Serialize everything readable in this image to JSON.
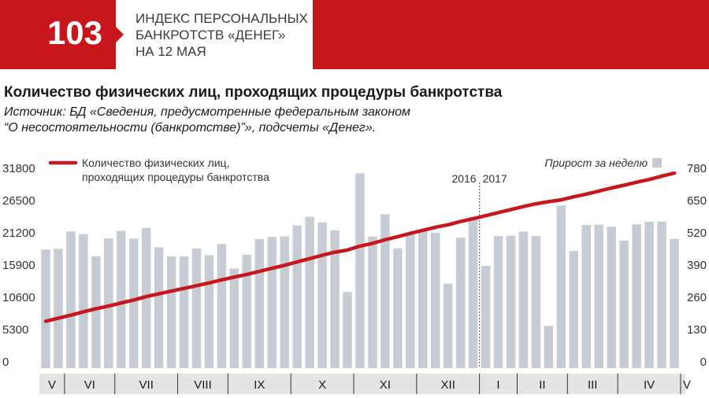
{
  "colors": {
    "brand_red": "#c8161d",
    "bar_gray": "#c5ccd3",
    "axis_text": "#333333",
    "band_gray": "#e4e4e4"
  },
  "header": {
    "index_number": "103",
    "index_title_lines": [
      "ИНДЕКС ПЕРСОНАЛЬНЫХ",
      "БАНКРОТСТВ «ДЕНЕГ»",
      "НА 12 МАЯ"
    ]
  },
  "title": "Количество физических лиц, проходящих процедуры банкротства",
  "source_lines": [
    "Источник: БД «Сведения, предусмотренные федеральным законом",
    "“О несостоятельности (банкротстве)”», подсчеты «Денег»."
  ],
  "chart_data": {
    "type": "bar+line",
    "legend": {
      "line_label_lines": [
        "Количество физических лиц,",
        "проходящих процедуры банкротства"
      ],
      "bar_label": "Прирост за неделю"
    },
    "left_axis": {
      "ticks": [
        0,
        5300,
        10600,
        15900,
        21200,
        26500,
        31800
      ],
      "tick_labels": [
        "0",
        "5300",
        "10600",
        "15900",
        "21200",
        "26500",
        "31800"
      ],
      "ylim": [
        0,
        31800
      ]
    },
    "right_axis": {
      "ticks": [
        0,
        130,
        260,
        390,
        520,
        650,
        780
      ],
      "tick_labels": [
        "0",
        "130",
        "260",
        "390",
        "520",
        "650",
        "780"
      ],
      "ylim": [
        0,
        780
      ]
    },
    "year_labels": [
      "2016",
      "2017"
    ],
    "year_divider_after_week": 35,
    "months": [
      {
        "label": "V",
        "weeks": 2
      },
      {
        "label": "VI",
        "weeks": 4
      },
      {
        "label": "VII",
        "weeks": 5
      },
      {
        "label": "VIII",
        "weeks": 4
      },
      {
        "label": "IX",
        "weeks": 5
      },
      {
        "label": "X",
        "weeks": 5
      },
      {
        "label": "XI",
        "weeks": 5
      },
      {
        "label": "XII",
        "weeks": 5
      },
      {
        "label": "I",
        "weeks": 3
      },
      {
        "label": "II",
        "weeks": 4
      },
      {
        "label": "III",
        "weeks": 4
      },
      {
        "label": "IV",
        "weeks": 5
      },
      {
        "label": "V",
        "weeks": 1
      }
    ],
    "series": [
      {
        "name": "Прирост за неделю",
        "kind": "bar",
        "axis": "right",
        "values": [
          478,
          481,
          551,
          540,
          451,
          523,
          554,
          522,
          565,
          487,
          450,
          450,
          482,
          455,
          500,
          401,
          457,
          520,
          529,
          531,
          575,
          610,
          587,
          555,
          307,
          785,
          530,
          620,
          483,
          543,
          557,
          546,
          340,
          526,
          610,
          412,
          532,
          534,
          550,
          532,
          170,
          655,
          472,
          577,
          578,
          570,
          514,
          580,
          590,
          590,
          521
        ]
      },
      {
        "name": "Количество физических лиц, проходящих процедуры банкротства",
        "kind": "line",
        "axis": "left",
        "values": [
          7700,
          8200,
          8700,
          9250,
          9750,
          10200,
          10700,
          11200,
          11750,
          12200,
          12650,
          13100,
          13550,
          14000,
          14500,
          14950,
          15400,
          15900,
          16400,
          16900,
          17450,
          18000,
          18550,
          19050,
          19400,
          20050,
          20500,
          21100,
          21600,
          22150,
          22650,
          23150,
          23550,
          24100,
          24550,
          25050,
          25550,
          26050,
          26550,
          27000,
          27350,
          27650,
          28150,
          28600,
          29100,
          29600,
          30050,
          30550,
          31000,
          31550,
          32050
        ]
      }
    ]
  }
}
